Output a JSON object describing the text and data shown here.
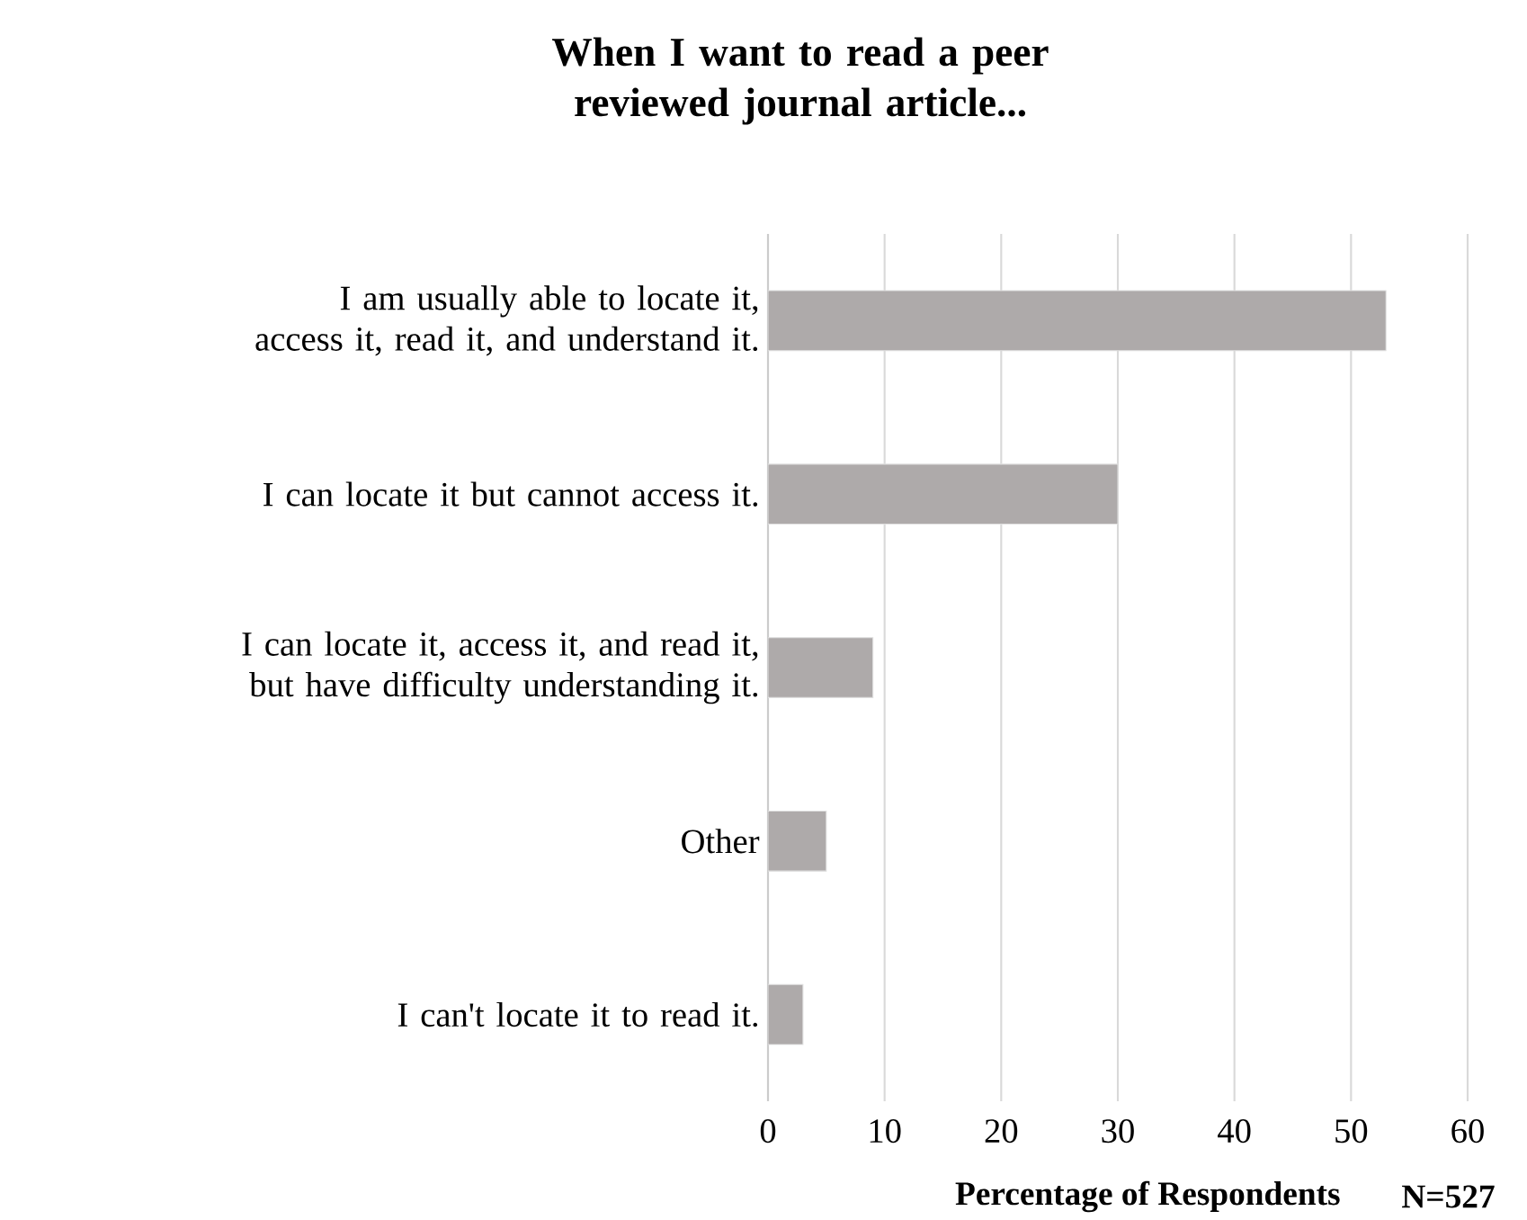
{
  "chart_data": {
    "type": "bar",
    "orientation": "horizontal",
    "title": "When I want to read a peer reviewed journal  article...",
    "xlabel": "Percentage of Respondents",
    "annotations": [
      "N=527"
    ],
    "categories": [
      "I am usually able to locate it, access it, read it, and understand it.",
      "I can locate it but cannot access it.",
      "I can locate it, access it, and read it, but have difficulty understanding it.",
      "Other",
      "I can't locate it to read it."
    ],
    "values": [
      53,
      30,
      9,
      5,
      3
    ],
    "color": "#aeaaaa",
    "xlim": [
      0,
      60
    ],
    "xticks": [
      0,
      10,
      20,
      30,
      40,
      50,
      60
    ],
    "grid": "x"
  }
}
